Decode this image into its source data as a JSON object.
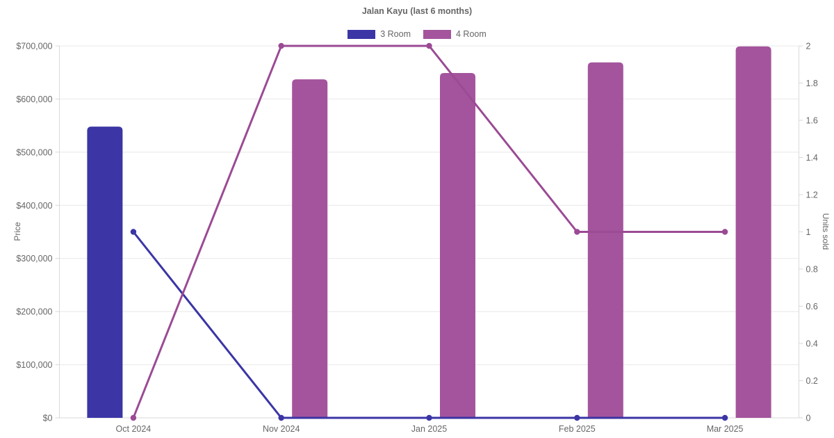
{
  "colors": {
    "background": "#ffffff",
    "grid_line": "#e8e8e8",
    "axis_border": "#d9d9d9",
    "tick_text": "#666666",
    "title_text": "#666666"
  },
  "chart_data": {
    "type": "combo-bar-line",
    "title": "Jalan Kayu (last 6 months)",
    "legend_position": "top",
    "grid": "horizontal-only",
    "categories": [
      "Oct 2024",
      "Nov 2024",
      "Jan 2025",
      "Feb 2025",
      "Mar 2025"
    ],
    "series": [
      {
        "name": "3 Room",
        "color": "#3b35a5",
        "line_color": "#3b35a5",
        "bar_prices": [
          548000,
          null,
          null,
          null,
          null
        ],
        "units_sold": [
          1,
          0,
          0,
          0,
          0
        ]
      },
      {
        "name": "4 Room",
        "color": "#a4549c",
        "line_color": "#9b4a94",
        "bar_prices": [
          null,
          637000,
          649000,
          669000,
          699000
        ],
        "units_sold": [
          0,
          2,
          2,
          1,
          1
        ]
      }
    ],
    "y_left": {
      "label": "Price",
      "min": 0,
      "max": 700000,
      "tick_values": [
        0,
        100000,
        200000,
        300000,
        400000,
        500000,
        600000,
        700000
      ],
      "tick_labels": [
        "$0",
        "$100,000",
        "$200,000",
        "$300,000",
        "$400,000",
        "$500,000",
        "$600,000",
        "$700,000"
      ]
    },
    "y_right": {
      "label": "Units sold",
      "min": 0,
      "max": 2,
      "tick_values": [
        0,
        0.2,
        0.4,
        0.6,
        0.8,
        1,
        1.2,
        1.4,
        1.6,
        1.8,
        2
      ],
      "tick_labels": [
        "0",
        "0.2",
        "0.4",
        "0.6",
        "0.8",
        "1",
        "1.2",
        "1.4",
        "1.6",
        "1.8",
        "2"
      ]
    }
  }
}
